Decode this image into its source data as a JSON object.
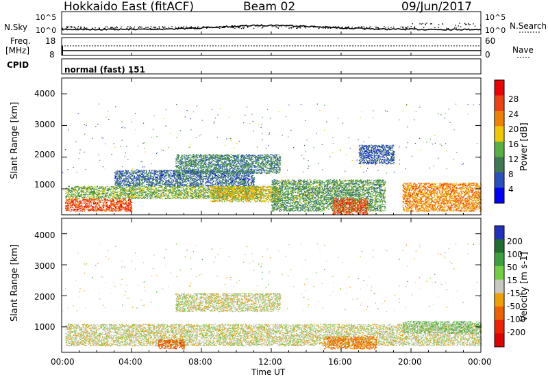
{
  "header": {
    "station": "Hokkaido East (fitACF)",
    "beam": "Beam 02",
    "date": "09/Jun/2017"
  },
  "noise_panel": {
    "left_label": "N.Sky",
    "right_label": "N.Search",
    "left_ticks": [
      "10^5",
      "10^0"
    ],
    "right_ticks": [
      "10^5",
      "10^0"
    ]
  },
  "freq_panel": {
    "label_line1": "Freq.",
    "label_line2": "[MHz]",
    "cpid_label": "CPID",
    "left_ticks": [
      "18",
      "8"
    ],
    "right_ticks": [
      "60",
      "0"
    ],
    "right_label": "Nave",
    "cpid_value": "normal (fast) 151"
  },
  "axes": {
    "ylabel": "Slant Range [km]",
    "xlabel": "Time UT",
    "xticks": [
      "00:00",
      "04:00",
      "08:00",
      "12:00",
      "16:00",
      "20:00",
      "00:00"
    ],
    "yticks": [
      "1000",
      "2000",
      "3000",
      "4000"
    ]
  },
  "power_colorbar": {
    "label": "Power [dB]",
    "ticks": [
      "4",
      "8",
      "12",
      "16",
      "20",
      "24",
      "28"
    ],
    "colors": [
      "#0000ff",
      "#2850c0",
      "#3d7a52",
      "#55b040",
      "#f0c800",
      "#f08000",
      "#f04010",
      "#ee0000"
    ]
  },
  "velocity_colorbar": {
    "label": "Velocity [m s-1]",
    "ticks": [
      "200",
      "100",
      "50",
      "15",
      "-15",
      "-50",
      "-100",
      "-200"
    ],
    "colors": [
      "#2030c0",
      "#1f6e2e",
      "#3ca03c",
      "#70d040",
      "#c8c8c0",
      "#f0a000",
      "#f06000",
      "#f02000",
      "#e00000"
    ]
  },
  "chart_data": [
    {
      "type": "heatmap",
      "title": "Power",
      "x_range_hours": [
        0,
        24
      ],
      "y_range_km": [
        180,
        4500
      ],
      "regions": [
        {
          "t0": 0.2,
          "t1": 4.0,
          "r0": 300,
          "r1": 700,
          "value_db": 26
        },
        {
          "t0": 0.2,
          "t1": 11.5,
          "r0": 700,
          "r1": 1100,
          "value_db": 14
        },
        {
          "t0": 3.0,
          "t1": 11.0,
          "r0": 1100,
          "r1": 1600,
          "value_db": 8
        },
        {
          "t0": 6.5,
          "t1": 12.5,
          "r0": 1500,
          "r1": 2100,
          "value_db": 10
        },
        {
          "t0": 8.5,
          "t1": 12.5,
          "r0": 600,
          "r1": 1100,
          "value_db": 18
        },
        {
          "t0": 12.0,
          "t1": 18.5,
          "r0": 300,
          "r1": 1300,
          "value_db": 12
        },
        {
          "t0": 15.5,
          "t1": 17.5,
          "r0": 200,
          "r1": 700,
          "value_db": 25
        },
        {
          "t0": 17.0,
          "t1": 19.0,
          "r0": 1800,
          "r1": 2400,
          "value_db": 7
        },
        {
          "t0": 19.5,
          "t1": 24.0,
          "r0": 300,
          "r1": 1200,
          "value_db": 22
        }
      ]
    },
    {
      "type": "heatmap",
      "title": "Velocity",
      "x_range_hours": [
        0,
        24
      ],
      "y_range_km": [
        180,
        4500
      ],
      "regions": [
        {
          "t0": 0.2,
          "t1": 24.0,
          "r0": 400,
          "r1": 1100,
          "value_ms": 0
        },
        {
          "t0": 6.5,
          "t1": 12.5,
          "r0": 1500,
          "r1": 2100,
          "value_ms": 0
        },
        {
          "t0": 5.5,
          "t1": 7.0,
          "r0": 300,
          "r1": 600,
          "value_ms": -80
        },
        {
          "t0": 15.0,
          "t1": 18.0,
          "r0": 300,
          "r1": 700,
          "value_ms": -60
        },
        {
          "t0": 19.5,
          "t1": 24.0,
          "r0": 800,
          "r1": 1200,
          "value_ms": 20
        }
      ]
    }
  ]
}
